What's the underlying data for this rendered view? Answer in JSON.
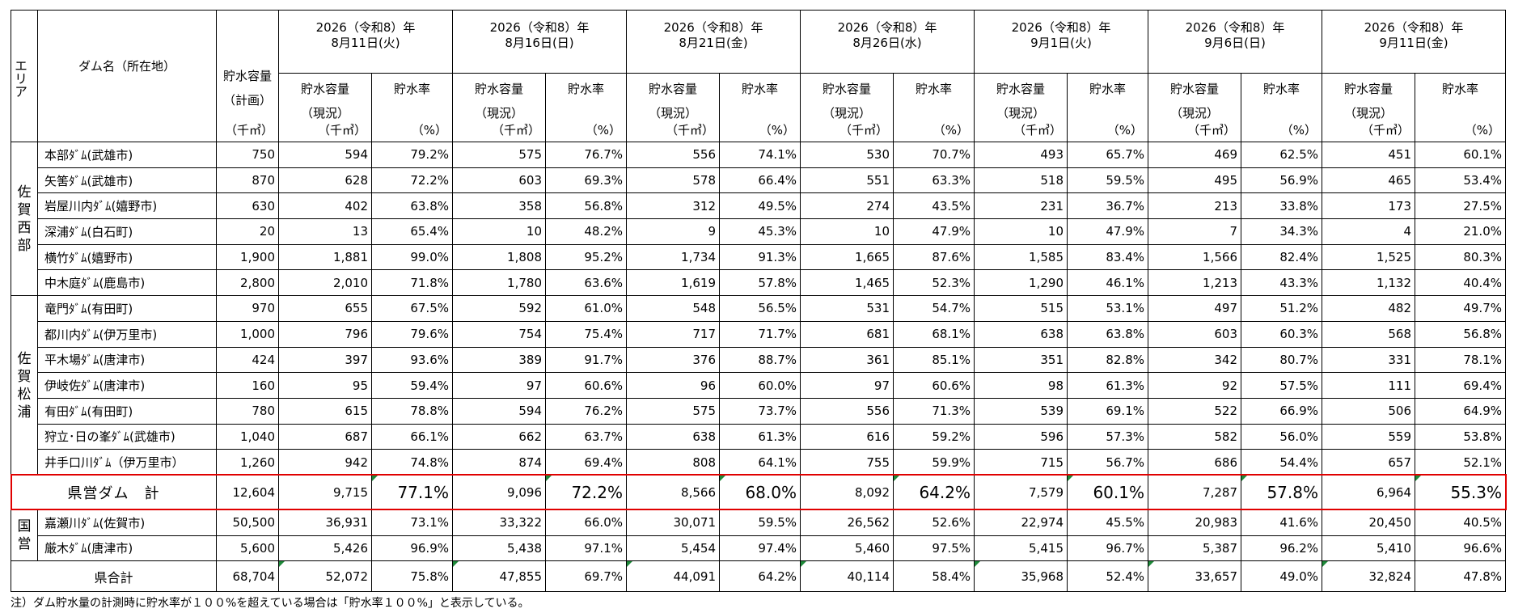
{
  "header": {
    "area_label": "エリア",
    "dam_label": "ダム名（所在地）",
    "plan_label_1": "貯水容量",
    "plan_label_2": "（計画）",
    "plan_unit": "（千㎥）",
    "cap_label_1": "貯水容量",
    "cap_label_2": "（現況）",
    "cap_unit": "（千㎥）",
    "rate_label": "貯水率",
    "rate_unit": "（%）",
    "dates": [
      {
        "line1": "2026（令和8）年",
        "line2": "8月11日(火)"
      },
      {
        "line1": "2026（令和8）年",
        "line2": "8月16日(日)"
      },
      {
        "line1": "2026（令和8）年",
        "line2": "8月21日(金)"
      },
      {
        "line1": "2026（令和8）年",
        "line2": "8月26日(水)"
      },
      {
        "line1": "2026（令和8）年",
        "line2": "9月1日(火)"
      },
      {
        "line1": "2026（令和8）年",
        "line2": "9月6日(日)"
      },
      {
        "line1": "2026（令和8）年",
        "line2": "9月11日(金)"
      }
    ]
  },
  "areas": {
    "saga_nishi": [
      "佐",
      "賀",
      "西",
      "部"
    ],
    "saga_matsuura": [
      "佐",
      "賀",
      "松",
      "浦"
    ],
    "kokuei": [
      "国",
      "営"
    ]
  },
  "rows_nishi": [
    {
      "name": "本部ﾀﾞﾑ(武雄市)",
      "plan": "750",
      "vals": [
        "594",
        "79.2%",
        "575",
        "76.7%",
        "556",
        "74.1%",
        "530",
        "70.7%",
        "493",
        "65.7%",
        "469",
        "62.5%",
        "451",
        "60.1%"
      ]
    },
    {
      "name": "矢筈ﾀﾞﾑ(武雄市)",
      "plan": "870",
      "vals": [
        "628",
        "72.2%",
        "603",
        "69.3%",
        "578",
        "66.4%",
        "551",
        "63.3%",
        "518",
        "59.5%",
        "495",
        "56.9%",
        "465",
        "53.4%"
      ]
    },
    {
      "name": "岩屋川内ﾀﾞﾑ(嬉野市)",
      "plan": "630",
      "vals": [
        "402",
        "63.8%",
        "358",
        "56.8%",
        "312",
        "49.5%",
        "274",
        "43.5%",
        "231",
        "36.7%",
        "213",
        "33.8%",
        "173",
        "27.5%"
      ]
    },
    {
      "name": "深浦ﾀﾞﾑ(白石町)",
      "plan": "20",
      "vals": [
        "13",
        "65.4%",
        "10",
        "48.2%",
        "9",
        "45.3%",
        "10",
        "47.9%",
        "10",
        "47.9%",
        "7",
        "34.3%",
        "4",
        "21.0%"
      ]
    },
    {
      "name": "横竹ﾀﾞﾑ(嬉野市)",
      "plan": "1,900",
      "vals": [
        "1,881",
        "99.0%",
        "1,808",
        "95.2%",
        "1,734",
        "91.3%",
        "1,665",
        "87.6%",
        "1,585",
        "83.4%",
        "1,566",
        "82.4%",
        "1,525",
        "80.3%"
      ]
    },
    {
      "name": "中木庭ﾀﾞﾑ(鹿島市)",
      "plan": "2,800",
      "vals": [
        "2,010",
        "71.8%",
        "1,780",
        "63.6%",
        "1,619",
        "57.8%",
        "1,465",
        "52.3%",
        "1,290",
        "46.1%",
        "1,213",
        "43.3%",
        "1,132",
        "40.4%"
      ]
    }
  ],
  "rows_matsuura": [
    {
      "name": "竜門ﾀﾞﾑ(有田町)",
      "plan": "970",
      "vals": [
        "655",
        "67.5%",
        "592",
        "61.0%",
        "548",
        "56.5%",
        "531",
        "54.7%",
        "515",
        "53.1%",
        "497",
        "51.2%",
        "482",
        "49.7%"
      ]
    },
    {
      "name": "都川内ﾀﾞﾑ(伊万里市)",
      "plan": "1,000",
      "vals": [
        "796",
        "79.6%",
        "754",
        "75.4%",
        "717",
        "71.7%",
        "681",
        "68.1%",
        "638",
        "63.8%",
        "603",
        "60.3%",
        "568",
        "56.8%"
      ]
    },
    {
      "name": "平木場ﾀﾞﾑ(唐津市)",
      "plan": "424",
      "vals": [
        "397",
        "93.6%",
        "389",
        "91.7%",
        "376",
        "88.7%",
        "361",
        "85.1%",
        "351",
        "82.8%",
        "342",
        "80.7%",
        "331",
        "78.1%"
      ]
    },
    {
      "name": "伊岐佐ﾀﾞﾑ(唐津市)",
      "plan": "160",
      "vals": [
        "95",
        "59.4%",
        "97",
        "60.6%",
        "96",
        "60.0%",
        "97",
        "60.6%",
        "98",
        "61.3%",
        "92",
        "57.5%",
        "111",
        "69.4%"
      ]
    },
    {
      "name": "有田ﾀﾞﾑ(有田町)",
      "plan": "780",
      "vals": [
        "615",
        "78.8%",
        "594",
        "76.2%",
        "575",
        "73.7%",
        "556",
        "71.3%",
        "539",
        "69.1%",
        "522",
        "66.9%",
        "506",
        "64.9%"
      ]
    },
    {
      "name": "狩立･日の峯ﾀﾞﾑ(武雄市)",
      "plan": "1,040",
      "vals": [
        "687",
        "66.1%",
        "662",
        "63.7%",
        "638",
        "61.3%",
        "616",
        "59.2%",
        "596",
        "57.3%",
        "582",
        "56.0%",
        "559",
        "53.8%"
      ]
    },
    {
      "name": "井手口川ﾀﾞﾑ（伊万里市）",
      "plan": "1,260",
      "vals": [
        "942",
        "74.8%",
        "874",
        "69.4%",
        "808",
        "64.1%",
        "755",
        "59.9%",
        "715",
        "56.7%",
        "686",
        "54.4%",
        "657",
        "52.1%"
      ]
    }
  ],
  "prefectural_total": {
    "label": "県営ダム　計",
    "plan": "12,604",
    "vals": [
      "9,715",
      "77.1%",
      "9,096",
      "72.2%",
      "8,566",
      "68.0%",
      "8,092",
      "64.2%",
      "7,579",
      "60.1%",
      "7,287",
      "57.8%",
      "6,964",
      "55.3%"
    ]
  },
  "rows_kokuei": [
    {
      "name": "嘉瀬川ﾀﾞﾑ(佐賀市)",
      "plan": "50,500",
      "vals": [
        "36,931",
        "73.1%",
        "33,322",
        "66.0%",
        "30,071",
        "59.5%",
        "26,562",
        "52.6%",
        "22,974",
        "45.5%",
        "20,983",
        "41.6%",
        "20,450",
        "40.5%"
      ]
    },
    {
      "name": "厳木ﾀﾞﾑ(唐津市)",
      "plan": "5,600",
      "vals": [
        "5,426",
        "96.9%",
        "5,438",
        "97.1%",
        "5,454",
        "97.4%",
        "5,460",
        "97.5%",
        "5,415",
        "96.7%",
        "5,387",
        "96.2%",
        "5,410",
        "96.6%"
      ]
    }
  ],
  "grand_total": {
    "label": "県合計",
    "plan": "68,704",
    "vals": [
      "52,072",
      "75.8%",
      "47,855",
      "69.7%",
      "44,091",
      "64.2%",
      "40,114",
      "58.4%",
      "35,968",
      "52.4%",
      "33,657",
      "49.0%",
      "32,824",
      "47.8%"
    ]
  },
  "note": "注）ダム貯水量の計測時に貯水率が１００%を超えている場合は「貯水率１００%」と表示している。",
  "colors": {
    "highlight_border": "#e00000",
    "cell_marker": "#1e8a3a"
  }
}
